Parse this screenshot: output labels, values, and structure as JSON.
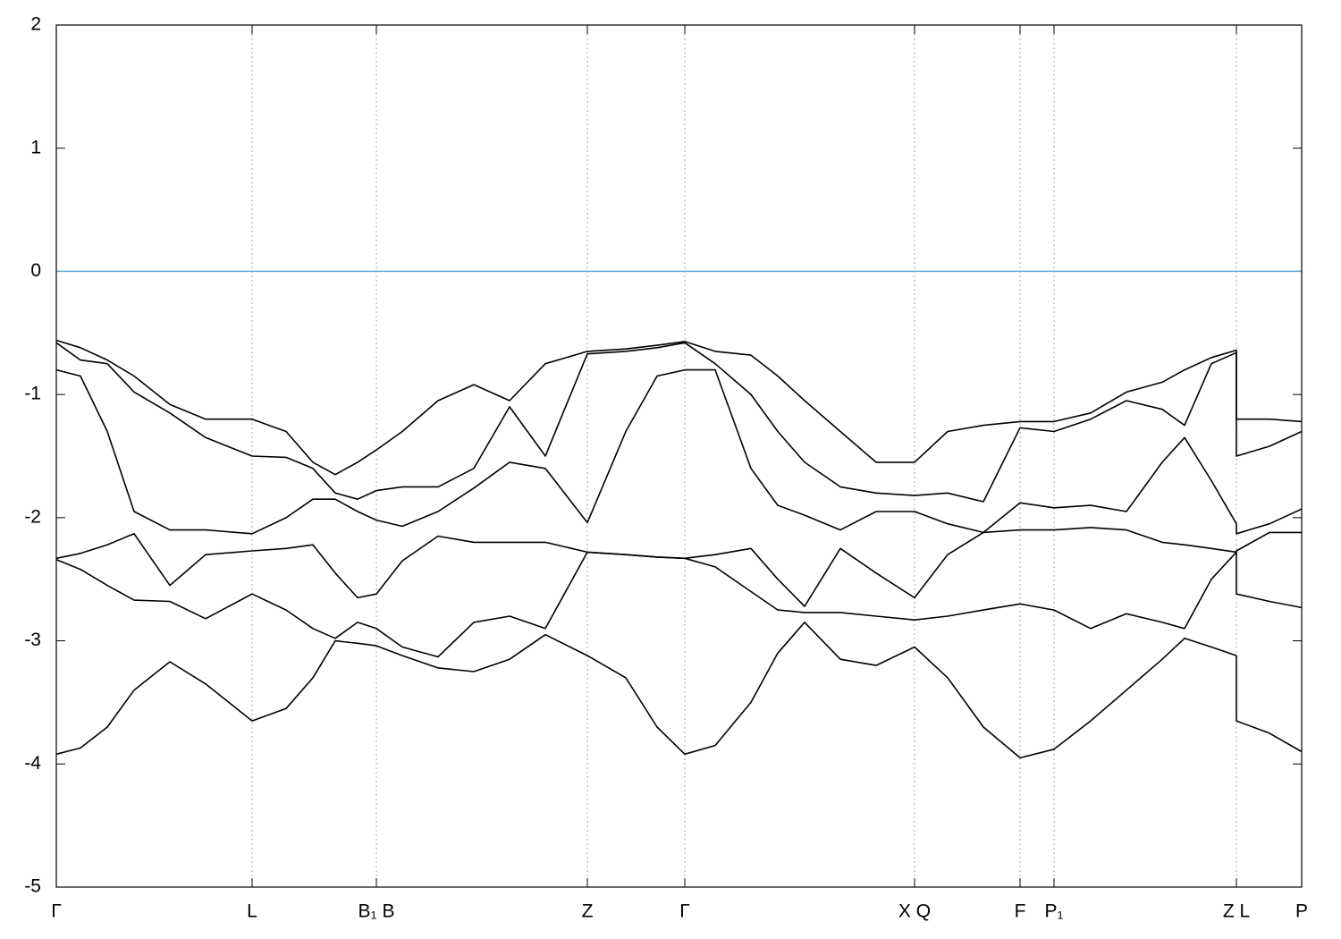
{
  "chart_data": {
    "type": "line",
    "x": [
      0,
      0.27,
      0.57,
      0.87,
      1.27,
      1.67,
      2.19,
      2.57,
      2.87,
      3.12,
      3.37,
      3.58,
      3.87,
      4.27,
      4.67,
      5.07,
      5.47,
      5.94,
      6.37,
      6.72,
      7.03,
      7.37,
      7.77,
      8.07,
      8.37,
      8.77,
      9.17,
      9.6,
      9.97,
      10.37,
      10.78,
      11.16,
      11.57,
      11.97,
      12.37,
      12.62,
      12.92,
      13.2,
      13.2,
      13.57,
      13.93
    ],
    "series": [
      {
        "color": "#000000",
        "values": [
          -0.56,
          -0.62,
          -0.72,
          -0.85,
          -1.08,
          -1.2,
          -1.2,
          -1.3,
          -1.55,
          -1.65,
          -1.55,
          -1.45,
          -1.3,
          -1.05,
          -0.92,
          -1.05,
          -0.75,
          -0.65,
          -0.63,
          -0.6,
          -0.57,
          -0.65,
          -0.68,
          -0.85,
          -1.05,
          -1.3,
          -1.55,
          -1.55,
          -1.3,
          -1.25,
          -1.22,
          -1.22,
          -1.15,
          -0.98,
          -0.9,
          -0.8,
          -0.7,
          -0.64,
          -1.2,
          -1.2,
          -1.22
        ]
      },
      {
        "color": "#000000",
        "values": [
          -0.58,
          -0.72,
          -0.75,
          -0.98,
          -1.15,
          -1.35,
          -1.5,
          -1.51,
          -1.6,
          -1.8,
          -1.85,
          -1.78,
          -1.75,
          -1.75,
          -1.6,
          -1.1,
          -1.5,
          -0.67,
          -0.65,
          -0.62,
          -0.58,
          -0.75,
          -1.0,
          -1.3,
          -1.55,
          -1.75,
          -1.8,
          -1.82,
          -1.8,
          -1.87,
          -1.27,
          -1.3,
          -1.2,
          -1.05,
          -1.12,
          -1.25,
          -0.75,
          -0.66,
          -1.5,
          -1.42,
          -1.3
        ]
      },
      {
        "color": "#000000",
        "values": [
          -0.8,
          -0.85,
          -1.3,
          -1.95,
          -2.1,
          -2.1,
          -2.13,
          -2.0,
          -1.85,
          -1.85,
          -1.95,
          -2.02,
          -2.07,
          -1.95,
          -1.76,
          -1.55,
          -1.6,
          -2.04,
          -1.3,
          -0.85,
          -0.8,
          -0.8,
          -1.6,
          -1.9,
          -1.98,
          -2.1,
          -1.95,
          -1.95,
          -2.05,
          -2.12,
          -1.88,
          -1.92,
          -1.9,
          -1.95,
          -1.55,
          -1.35,
          -1.7,
          -2.05,
          -2.13,
          -2.05,
          -1.93
        ]
      },
      {
        "color": "#000000",
        "values": [
          -2.33,
          -2.29,
          -2.22,
          -2.13,
          -2.55,
          -2.3,
          -2.27,
          -2.25,
          -2.22,
          -2.45,
          -2.65,
          -2.62,
          -2.35,
          -2.15,
          -2.2,
          -2.2,
          -2.2,
          -2.28,
          -2.3,
          -2.32,
          -2.33,
          -2.3,
          -2.25,
          -2.5,
          -2.72,
          -2.25,
          -2.45,
          -2.65,
          -2.3,
          -2.12,
          -2.1,
          -2.1,
          -2.08,
          -2.1,
          -2.2,
          -2.22,
          -2.25,
          -2.28,
          -2.27,
          -2.12,
          -2.12
        ]
      },
      {
        "color": "#000000",
        "values": [
          -2.34,
          -2.42,
          -2.55,
          -2.67,
          -2.68,
          -2.82,
          -2.62,
          -2.75,
          -2.9,
          -2.98,
          -2.85,
          -2.9,
          -3.05,
          -3.13,
          -2.85,
          -2.8,
          -2.9,
          -2.28,
          -2.3,
          -2.32,
          -2.33,
          -2.4,
          -2.6,
          -2.75,
          -2.77,
          -2.77,
          -2.8,
          -2.83,
          -2.8,
          -2.75,
          -2.7,
          -2.75,
          -2.9,
          -2.78,
          -2.85,
          -2.9,
          -2.5,
          -2.28,
          -2.62,
          -2.68,
          -2.73
        ]
      },
      {
        "color": "#000000",
        "values": [
          -3.92,
          -3.87,
          -3.7,
          -3.4,
          -3.17,
          -3.35,
          -3.65,
          -3.55,
          -3.3,
          -3.0,
          -3.02,
          -3.04,
          -3.12,
          -3.22,
          -3.25,
          -3.15,
          -2.95,
          -3.12,
          -3.3,
          -3.7,
          -3.92,
          -3.85,
          -3.5,
          -3.1,
          -2.85,
          -3.15,
          -3.2,
          -3.05,
          -3.3,
          -3.7,
          -3.95,
          -3.88,
          -3.65,
          -3.4,
          -3.15,
          -2.98,
          -3.05,
          -3.12,
          -3.65,
          -3.75,
          -3.9
        ]
      }
    ],
    "xlim": [
      0,
      13.93
    ],
    "xticks": [
      {
        "value": 0,
        "label": "Γ"
      },
      {
        "value": 2.19,
        "label": "L"
      },
      {
        "value": 3.58,
        "label": "B₁ B"
      },
      {
        "value": 5.94,
        "label": "Z"
      },
      {
        "value": 7.03,
        "label": "Γ"
      },
      {
        "value": 9.6,
        "label": "X Q"
      },
      {
        "value": 10.78,
        "label": "F"
      },
      {
        "value": 11.16,
        "label": "P₁"
      },
      {
        "value": 13.2,
        "label": "Z L"
      },
      {
        "value": 13.93,
        "label": "P"
      }
    ],
    "ylim": [
      -5,
      2
    ],
    "yticks": [
      -5,
      -4,
      -3,
      -2,
      -1,
      0,
      1,
      2
    ],
    "grid": true,
    "hline": 0,
    "hline_color": "#5aaec8"
  }
}
